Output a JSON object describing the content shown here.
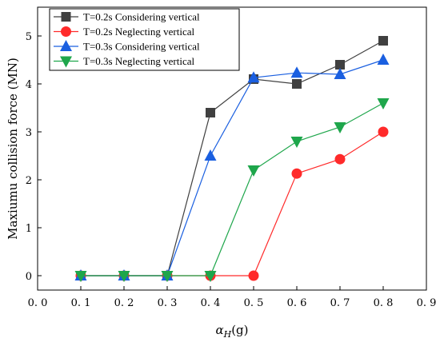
{
  "chart_data": {
    "type": "line",
    "xlabel_symbol": "α",
    "xlabel_sub": "H",
    "xlabel_unit": "(g)",
    "ylabel": "Maxiumu collision force (MN)",
    "xlim": [
      0.0,
      0.9
    ],
    "ylim": [
      -0.3,
      5.6
    ],
    "x_ticks": [
      "0. 0",
      "0. 1",
      "0. 2",
      "0. 3",
      "0. 4",
      "0. 5",
      "0. 6",
      "0. 7",
      "0. 8",
      "0. 9"
    ],
    "x_tick_values": [
      0.0,
      0.1,
      0.2,
      0.3,
      0.4,
      0.5,
      0.6,
      0.7,
      0.8,
      0.9
    ],
    "y_ticks": [
      "0",
      "1",
      "2",
      "3",
      "4",
      "5"
    ],
    "y_tick_values": [
      0,
      1,
      2,
      3,
      4,
      5
    ],
    "x": [
      0.1,
      0.2,
      0.3,
      0.4,
      0.5,
      0.6,
      0.7,
      0.8
    ],
    "legend_position": "top-left",
    "grid": false,
    "series": [
      {
        "name": "T=0.2s Considering vertical",
        "color": "#404040",
        "marker": "square",
        "values": [
          0,
          0,
          0,
          3.4,
          4.1,
          4.0,
          4.4,
          4.9
        ]
      },
      {
        "name": "T=0.2s Neglecting vertical",
        "color": "#ff2a2a",
        "marker": "circle",
        "values": [
          0,
          0,
          0,
          0,
          0,
          2.13,
          2.43,
          3.0
        ]
      },
      {
        "name": "T=0.3s Considering vertical",
        "color": "#1a5fe0",
        "marker": "triangle-up",
        "values": [
          0,
          0,
          0,
          2.5,
          4.13,
          4.23,
          4.2,
          4.5
        ]
      },
      {
        "name": "T=0.3s Neglecting vertical",
        "color": "#1ea64b",
        "marker": "triangle-down",
        "values": [
          0,
          0,
          0,
          0,
          2.2,
          2.8,
          3.1,
          3.6
        ]
      }
    ]
  }
}
